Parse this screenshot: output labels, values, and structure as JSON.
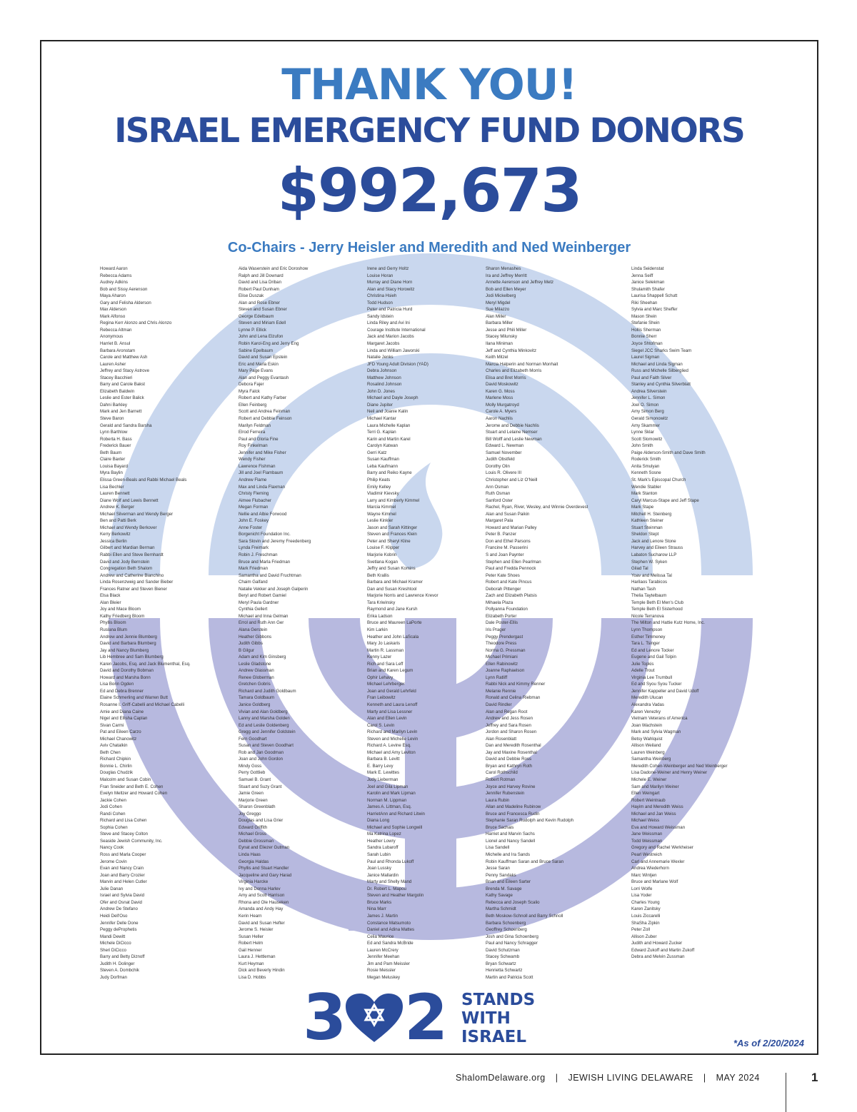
{
  "header": {
    "title": "THANK YOU!",
    "subtitle": "ISRAEL EMERGENCY FUND DONORS",
    "amount": "$992,673",
    "cochairs": "Co-Chairs - Jerry Heisler and Meredith and Ned Weinberger"
  },
  "donors": {
    "col1": [
      "Howard Aaron",
      "Rebecca Adams",
      "Audrey Adkins",
      "Bob and Sissy Aerenson",
      "Maya Aharon",
      "Gary and Felisha Alderson",
      "Max Alderson",
      "Mark Alfonso",
      "Regina Kerr Alonzo and Chris Alonzo",
      "Rebecca Altman",
      "Anonymous",
      "Harriet B. Ansul",
      "Barbara Aronstam",
      "Carole and Matthew Ash",
      "Lauren Asher",
      "Jeffrey and Stacy Astrove",
      "Stacey Bacchieri",
      "Barry and Carole Bakst",
      "Elizabeth Baldwin",
      "Leslie and Ester Balick",
      "Dahni Barkley",
      "Mark and Jen Barnett",
      "Steve Baron",
      "Gerald and Sandra Barsha",
      "Lynn Barthlow",
      "Roberta H. Bass",
      "Frederick Bauer",
      "Beth Baum",
      "Claire Baxter",
      "Louisa Bayard",
      "Myra Baylin",
      "Elissa Green-Beals and Rabbi Michael Beals",
      "Lisa Bechler",
      "Lauren Bennett",
      "Diane Wolf and Lewis Bennett",
      "Andrew K. Berger",
      "Michael Silverman and Wendy Berger",
      "Ben and Patti Berk",
      "Michael and Wendy Berkover",
      "Kerry Berkowitz",
      "Jessica Berlin",
      "Gilbert and Mardian Berman",
      "Rabbi Ellen and Steve Bernhardt",
      "David and Jody Bernstein",
      "Congregation Beth Shalom",
      "Andrew and Catherine Bianchino",
      "Linda Rosenzweig and Sander Bieber",
      "Frances Ratner and Steven Biener",
      "Elsa Black",
      "Alan Bleier",
      "Joy and Mace Bloom",
      "Kathy Friedberg Bloom",
      "Phyllis Bloom",
      "Ruslana Blum",
      "Andrew and Jennie Blumberg",
      "David and Barbara Blumberg",
      "Jay and Nancy Blumberg",
      "Lib Hembree and Sam Blumberg",
      "Karen Jacobs, Esq. and Jack Blumenthal, Esq.",
      "David and Dorothy Bobman",
      "Howard and Marsha Bonn",
      "Lisa Borin Ogden",
      "Ed and Debra Brenner",
      "Elaine Schmerling and Warren Butt",
      "Rosanne I. Griff-Cabelli and Michael Cabelli",
      "Amie and Diana Caine",
      "Nigel and Ellisha Caplan",
      "Sivan Carmi",
      "Pat and Eileen Carzo",
      "Michael Chanowitz",
      "Aviv Chatalkin",
      "Beth Chen",
      "Richard Chipkin",
      "Bonnie L. Chirlin",
      "Douglas Chudzik",
      "Malcolm and Susan Cobin",
      "Fran Sneider and Beth E. Cohen",
      "Evelyn Meltzer and Howard Cohen",
      "Jackie Cohen",
      "Jodi Cohen",
      "Randi Cohen",
      "Richard and Lisa Cohen",
      "Sophia Cohen",
      "Steve and Stacey Colton",
      "Seaside Jewish Community, Inc.",
      "Nancy Cook",
      "Ross and Marla Cooper",
      "Jerome Covin",
      "Evan and Nancy Crain",
      "Joan and Barry Crozier",
      "Marvin and Helen Cutler",
      "Julie Danan",
      "Israel and Sylvia David",
      "Ofer and Osnat David",
      "Andrew De Stefano",
      "Heidi Dell'Oso",
      "Jennifer Delle Done",
      "Peggy deProphetis",
      "Mandi Dewitt",
      "Michele DiCicco",
      "Sheri DiCicco",
      "Barry and Betty Diznoff",
      "Judith H. Dolinger",
      "Steven A. Dombchik",
      "Judy Dorfman"
    ],
    "col2": [
      "Aida Waserstein and Eric Doroshow",
      "Ralph and Jill Downard",
      "David and Lisa Driban",
      "Robert Paul Dunham",
      "Elise Duszak",
      "Alan and Rose Ebner",
      "Steven and Susan Ebner",
      "George Edelbaum",
      "Steven and Miriam Edell",
      "Lynne P. Ellick",
      "John and Lena Elzufon",
      "Robin Karol-Eng and Jerry Eng",
      "Sabine Epelbaum",
      "David and Susan Epstein",
      "Eric and Marla Eskin",
      "Mary Page Evans",
      "Alan and Peggy Evantash",
      "Debora Fajer",
      "Myra Falck",
      "Robert and Kathy Farber",
      "Ellen Feinberg",
      "Scott and Andrea Feinman",
      "Robert and Debbie Feinson",
      "Marilyn Feldman",
      "Elrod Ferreira",
      "Paul and Gloria Fine",
      "Roy Finkelman",
      "Jennifer and Mike Fisher",
      "Wendy Fisher",
      "Lawrence Fishman",
      "Jill and Joel Flambaum",
      "Andrew Flame",
      "Max and Linda Flaxman",
      "Christy Fleming",
      "Aimee Flubacher",
      "Megan Forman",
      "Nellie and Albie Forwood",
      "John E. Foskey",
      "Anne Foster",
      "Borgenicht Foundation Inc.",
      "Sara Slovin and Jeremy Freedenberg",
      "Lynda Freimark",
      "Robin J. Freschman",
      "Bruce and Marla Friedman",
      "Mark Friedman",
      "Samantha and David Fruchtman",
      "Chaim Galfand",
      "Natalie Vekker and Joseph Galperin",
      "Beryl and Robert Gamiel",
      "Meryl Paula Gardner",
      "Cynthia Gellert",
      "Michael and Inna Gelman",
      "Errol and Ruth Ann Ger",
      "Alana Gerstein",
      "Heather Gibbons",
      "Judith Gibbs",
      "B Gilgur",
      "Adam and Kim Ginsberg",
      "Leslie Gladstone",
      "Andrew Glassman",
      "Renee Globerman",
      "Gretchen Gobris",
      "Richard and Judith Goldbaum",
      "Tamara Goldbaum",
      "Janice Goldberg",
      "Vivian and Alan Goldberg",
      "Lanny and Marsha Golden",
      "Ed and Leslie Goldenberg",
      "Gregg and Jennifer Goldstein",
      "Fern Goodhart",
      "Susan and Steven Goodhart",
      "Rob and Jan Goodman",
      "Joan and John Gordon",
      "Mindy Goss",
      "Perry Gottlieb",
      "Samuel B. Grant",
      "Stuart and Suzy Grant",
      "Jamie Green",
      "Marjorie Green",
      "Sharon Greenblath",
      "Joy Greggo",
      "Douglas and Lisa Grier",
      "Edward Griffith",
      "Michael Gross",
      "Debbie Grossman",
      "Eynat and Eliezer Gutman",
      "Linda Haas",
      "Georgia Haldas",
      "Phyllis and Stuart Handler",
      "Jacqueline and Gary Harad",
      "Virginia Harcke",
      "Ivy and Donna Harlev",
      "Amy and Scott Harrison",
      "Rhona and Ole Hauseken",
      "Amanda and Andy Hay",
      "Kerin Hearn",
      "David and Susan Hefter",
      "Jerome S. Heisler",
      "Susan Heller",
      "Robert Helm",
      "Gail Henner",
      "Laura J. Hettleman",
      "Kurt Heyman",
      "Dick and Beverly Hindin",
      "Lisa D. Hobbs"
    ],
    "col3": [
      "Irene and Gerry Holtz",
      "Louise Horan",
      "Murray and Diane Horn",
      "Alan and Stacy Horowitz",
      "Christina Hsieh",
      "Todd Hudson",
      "Peter and Patricia Hurd",
      "Sandy Idstein",
      "Linda Riley and Avi Ini",
      "Courage Institute International",
      "Jack and Marion Jacobs",
      "Margaret Jacobs",
      "Linda and William Jaworski",
      "Natalie Jenks",
      "JFD Young Adult Division (YAD)",
      "Debra Johnson",
      "Matthew Johnson",
      "Rosalind Johnson",
      "John D. Jones",
      "Michael and Dayle Joseph",
      "Diane Jupiter",
      "Neil and Joanie Kalin",
      "Michael Kantar",
      "Laura Michelle Kaplan",
      "Terri G. Kaplan",
      "Karin and Martin Karel",
      "Carolyn Katwan",
      "Gerri Katz",
      "Susan Kauffman",
      "Leba Kaufmann",
      "Barry and Reiko Kayne",
      "Philip Keats",
      "Emily Kelley",
      "Vladimir Kievsky",
      "Larry and Kimberly Kimmel",
      "Marcia Kimmel",
      "Wayne Kimmel",
      "Leslie Kinkler",
      "Jason and Sarah Kittinger",
      "Steven and Frances Klein",
      "Peter and Sheryl Kline",
      "Louise F. Klipper",
      "Marjorie Kobrin",
      "Svetlana Kogan",
      "Jeffry and Susan Komins",
      "Beth Krallis",
      "Barbara and Michael Kramer",
      "Dan and Susan Kreshtool",
      "Marjorie Norris and Lawrence Krevor",
      "Tara Kriwinsky",
      "Raymond and Jane Kursh",
      "Erika Ladson",
      "Bruce and Maureen LaPorte",
      "Kim Larkin",
      "Heather and John LaScala",
      "Mary Jo Laskaris",
      "Martin R. Lassman",
      "Kenny Lazer",
      "Rich and Sara Leff",
      "Brian and Karen Legum",
      "Ophir Lehavy",
      "Michael Lehrberger",
      "Joan and Gerald Lehrfeld",
      "Fran Leibowitz",
      "Kenneth and Laura Lenoff",
      "Marty and Lisa Lessner",
      "Alan and Ellen Levin",
      "Carol S. Levin",
      "Richard and Marilyn Levin",
      "Steven and Michelle Levin",
      "Richard A. Levine Esq.",
      "Michael and Amy Leviton",
      "Barbara B. Levitt",
      "E. Barry Levy",
      "Mark E. Lewittes",
      "Judy Lieberman",
      "Joel and Gila Lipman",
      "Karolin and Mark Lipman",
      "Norman M. Lippman",
      "James A. Littman, Esq.",
      "HarrietAnn and Richard Litwin",
      "Diana Long",
      "Michael and Sophie Longwill",
      "Ma Katrina Lopez",
      "Heather Lowry",
      "Sandra Lubaroff",
      "Sarah Lubin",
      "Paul and Rhonda Lukoff",
      "Joan Lussky",
      "Janice Mallardin",
      "Marty and Shelly Mand",
      "Dr. Robert L. Mapou",
      "Steven and Heather Margolin",
      "Bruce Marks",
      "Nina Marr",
      "James J. Martin",
      "Constance Matsumoto",
      "Daniel and Adina Mattes",
      "Celia Maurice",
      "Ed and Sandra McBride",
      "Lauren McCrery",
      "Jennifer Meehan",
      "Jim and Pam Meissler",
      "Rosie Meissler",
      "Megan Meluskey"
    ],
    "col4": [
      "Sharon Menashes",
      "Ira and Jeffrey Merritt",
      "Annette Aerenson and Jeffrey Metz",
      "Bob and Ellen Meyer",
      "Jodi Mickelberg",
      "Meryl Migdel",
      "Sue Milazzo",
      "Alan Miller",
      "Barbara Miller",
      "Jesse and Phili Miller",
      "Stacey Milunsky",
      "Ilana Miniman",
      "Jeff and Cynthia Minkovitz",
      "Keith Mitzel",
      "Marcia Halperin and Norman Monhait",
      "Charles and Elizabeth Morris",
      "Elisa and Bret Morris",
      "David Moskowitz",
      "Karen G. Moss",
      "Marlene Moss",
      "Molly Murgatroyd",
      "Carole A. Myers",
      "Aaron Nachlis",
      "Jerome and Debbie Nachlis",
      "Stuart and Lelaine Nemser",
      "Bill Wolff and Leslie Newman",
      "Edward L. Newman",
      "Samuel November",
      "Judith Obstfeld",
      "Dorothy Olin",
      "Louis R. Olivere III",
      "Christopher and Liz O'Neill",
      "Ann Osman",
      "Ruth Osman",
      "Sanford Oster",
      "Rachel, Ryan, River, Wesley, and Winnie Overdevest",
      "Alan and Susan Paikin",
      "Margaret Pala",
      "Howard and Marian Palley",
      "Peter B. Panzer",
      "Don and Ethel Parsons",
      "Francine M. Passerini",
      "S and Joan Paynter",
      "Stephen and Ellen Pearlman",
      "Paul and Fredda Pennock",
      "Peter Kate Shoes",
      "Robert and Kate Pincus",
      "Deborah Pittenger",
      "Zach and Elizabeth Platsis",
      "Mihaela Plaza",
      "Pollyanna Foundation",
      "Elizabeth Porter",
      "Dale Poster-Ellis",
      "Iris Prager",
      "Peggy Prendergast",
      "Theodore Press",
      "Norma G. Pressman",
      "Michael Primiani",
      "Ellen Rabinowitz",
      "Joanne Raphaelson",
      "Lynn Ratliff",
      "Rabbi Nick and Kimmy Renner",
      "Melanie Rennie",
      "Ronald and Celina Riebman",
      "David Rindler",
      "Alan and Regan Root",
      "Andrew and Jess Rosen",
      "Jeffrey and Sara Rosen",
      "Jordon and Sharon Rosen",
      "Alan Rosenblatt",
      "Dan and Meredith Rosenthal",
      "Jay and Maxine Rosenthal",
      "David and Debbie Ross",
      "Bryan and Kathryn Roth",
      "Carol Rothschild",
      "Robert Rotman",
      "Joyce and Harvey Rovine",
      "Jennifer Rubenstein",
      "Laura Rubin",
      "Allan and Madeline Rubinow",
      "Bruce and Francesca Rudin",
      "Stephanie Saran Rudolph and Kevin Rudolph",
      "Bruce Sachais",
      "Harriet and Marvin Sachs",
      "Lionel and Nancy Sandell",
      "Lisa Sandell",
      "Michelle and Ira Sands",
      "Robin Kauffman Saran and Bruce Saran",
      "Jesse Saran",
      "Penny Sandaks",
      "Brian and Eileen Sarter",
      "Brenda M. Savage",
      "Kathy Savage",
      "Rebecca and Joseph Scalio",
      "Martha Schmidt",
      "Beth Moskow-Schnoll and Barry Schnoll",
      "Barbara Schoenberg",
      "Geoffrey Schoenberg",
      "Josh and Gina Schoenberg",
      "Paul and Nancy Schragger",
      "David Schutzman",
      "Stacey Schwamb",
      "Bryan Schwartz",
      "Henrietta Schwartz",
      "Martin and Patricia Scott"
    ],
    "col5": [
      "Linda Seidenstat",
      "Jenna Seiff",
      "Janice Selekman",
      "Shulamith Shafer",
      "Laurisa Shappell Schutt",
      "Riki Sheehan",
      "Sylvia and Marc Sheffer",
      "Mason Shein",
      "Stefanie Shein",
      "Hollis Sherman",
      "Bonnie Sherr",
      "Joyce Shtofman",
      "Siegel JCC Sharks Swim Team",
      "Laurel Sigman",
      "Michael and Linda Sigman",
      "Russ and Michelle Silberglied",
      "Paul and Faith Silver",
      "Stanley and Cynthia Silverblatt",
      "Andrea Silverstein",
      "Jennifer L. Simon",
      "Joel O. Simon",
      "Amy Simon Berg",
      "Gerald Simonowitz",
      "Amy Skammer",
      "Lynne Sklar",
      "Scott Slomowitz",
      "John Smith",
      "Paige Alderson-Smith and Dave Smith",
      "Roderick Smith",
      "Anita Smulyan",
      "Kenneth Sosne",
      "St. Mark's Episcopal Church",
      "Wendie Stabler",
      "Mark Stanton",
      "Caryl Marcus-Stape and Jeff Stape",
      "Mark Stape",
      "Mitchell H. Steinberg",
      "Kathleen Steiner",
      "Stuart Steinman",
      "Sheldon Stept",
      "Jack and Lenore Stone",
      "Harvey and Eileen Strauss",
      "Labaton Sucharow LLP",
      "Stephen W. Syken",
      "Gilad Tal",
      "Yoav and Melissa Tal",
      "Harilaos Tarabicos",
      "Nathan Tash",
      "Thelia Taytelbaum",
      "Temple Beth El Men's Club",
      "Temple Beth El Sisterhood",
      "Nicole Terranova",
      "The Milton and Hattie Kutz Home, Inc.",
      "Lynn Thompson",
      "Esther Timmeney",
      "Tara L. Tsinger",
      "Ed and Lenore Tocker",
      "Eugene and Gail Tolpin",
      "Julie Topkis",
      "Adelle Trout",
      "Virginia Lee Trumbull",
      "Ed and Syou Syou Tucker",
      "Jennifer Kappeller and David Udoff",
      "Meredith Ulucan",
      "Alexandra Vadas",
      "Karen Venezky",
      "Vietnam Veterans of America",
      "Joan Wachstein",
      "Mark and Sylvia Wagman",
      "Betsy Wahlquist",
      "Allison Weiland",
      "Lauren Weinberg",
      "Samantha Weinberg",
      "Meredith Cohen-Weinberger and Ned Weinberger",
      "Lisa Dadone-Weiner and Henry Weiner",
      "Michele E. Weiner",
      "Sam and Marilyn Weiner",
      "Ellen Weingart",
      "Robert Weintraub",
      "Hayim and Meredith Weiss",
      "Michael and Jan Weiss",
      "Michael Weiss",
      "Eva and Howard Weissman",
      "Jane Weissman",
      "Todd Weissman",
      "Gregory and Rachel Werkheiser",
      "Pearl Westreich",
      "Carl and Annemarie Wexler",
      "Andrea Wiederhorn",
      "Marc Wintjen",
      "Bruce and Marlane Wolf",
      "Lorri Wolfe",
      "Lisa Yoder",
      "Charles Young",
      "Karen Zanitsky",
      "Louis Ziccarelli",
      "ShaSha Zipkin",
      "Peter Zoll",
      "Allison Zuber",
      "Judith and Howard Zucker",
      "Edward Zukoff and Martin Zukoff",
      "Debra and Melvin Zussman"
    ]
  },
  "logo": {
    "digit1": "3",
    "digit2": "2",
    "line1": "STANDS",
    "line2": "WITH",
    "line3": "ISRAEL",
    "icon": "heart-with-star-of-david"
  },
  "as_of": "*As of 2/20/2024",
  "footer": {
    "site": "ShalomDelaware.org",
    "separator": "|",
    "publication": "JEWISH LIVING DELAWARE",
    "issue": "MAY 2024",
    "page": "1"
  },
  "colors": {
    "light_blue": "#3b7bc1",
    "dark_blue": "#2b4c9b",
    "watermark_upper": "#c9d7ee",
    "watermark_lower": "#b7b9df"
  }
}
